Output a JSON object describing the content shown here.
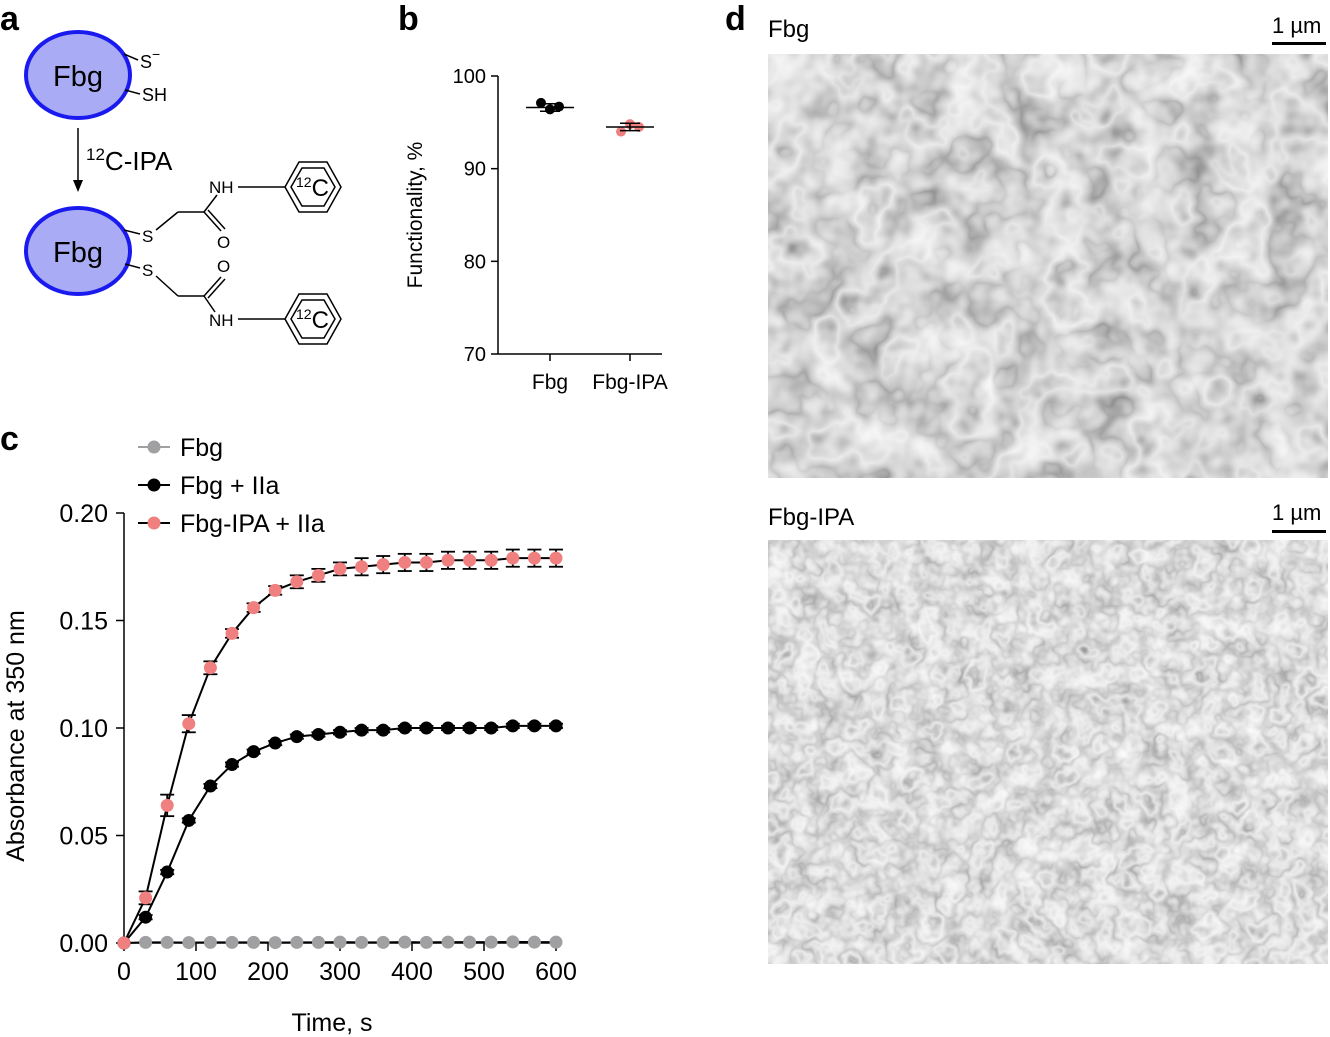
{
  "panels": {
    "a": {
      "letter": "a"
    },
    "b": {
      "letter": "b"
    },
    "c": {
      "letter": "c"
    },
    "d": {
      "letter": "d"
    }
  },
  "scheme": {
    "protein_label": "Fbg",
    "thiolate": "S",
    "thiolate_charge": "−",
    "thiol": "SH",
    "reagent_superscript": "12",
    "reagent_label": "C-IPA",
    "sulfur": "S",
    "amide_nh": "NH",
    "carbonyl_o": "O",
    "ring_isotope_superscript": "12",
    "ring_isotope_letter": "C",
    "colors": {
      "protein_fill": "#a9acf5",
      "protein_stroke": "#1a1aef"
    }
  },
  "images": {
    "top": {
      "caption": "Fbg",
      "scale_label": "1 µm"
    },
    "bottom": {
      "caption": "Fbg-IPA",
      "scale_label": "1 µm"
    }
  },
  "chart_data": [
    {
      "id": "b",
      "type": "scatter",
      "categories": [
        "Fbg",
        "Fbg-IPA"
      ],
      "ylabel": "Functionality, %",
      "xlabel": "",
      "ylim": [
        70,
        100
      ],
      "yticks": [
        70,
        80,
        90,
        100
      ],
      "series": [
        {
          "category": "Fbg",
          "points": [
            97.1,
            96.4,
            96.7
          ],
          "mean": 96.6,
          "sd": 0.4,
          "color": "#000000"
        },
        {
          "category": "Fbg-IPA",
          "points": [
            94.0,
            94.8,
            94.5
          ],
          "mean": 94.5,
          "sd": 0.4,
          "color": "#f08080"
        }
      ],
      "grid": false
    },
    {
      "id": "c",
      "type": "line",
      "xlabel": "Time, s",
      "ylabel": "Absorbance at 350 nm",
      "xlim": [
        0,
        600
      ],
      "ylim": [
        0,
        0.2
      ],
      "xticks": [
        0,
        100,
        200,
        300,
        400,
        500,
        600
      ],
      "yticks": [
        "0.00",
        "0.05",
        "0.10",
        "0.15",
        "0.20"
      ],
      "x": [
        0,
        30,
        60,
        90,
        120,
        150,
        180,
        210,
        240,
        270,
        300,
        330,
        360,
        390,
        420,
        450,
        480,
        510,
        540,
        570,
        600
      ],
      "legend": "top-left",
      "grid": false,
      "series": [
        {
          "name": "Fbg",
          "color": "#a0a0a3",
          "values": [
            0,
            0.0003,
            0.0003,
            0.0002,
            0.0003,
            0.0003,
            0.0003,
            0.0002,
            0.0003,
            0.0003,
            0.0004,
            0.0003,
            0.0003,
            0.0004,
            0.0003,
            0.0004,
            0.0004,
            0.0004,
            0.0005,
            0.0004,
            0.0004
          ],
          "error": [
            0,
            0,
            0,
            0,
            0,
            0,
            0,
            0,
            0,
            0,
            0,
            0,
            0,
            0,
            0,
            0,
            0,
            0,
            0,
            0,
            0
          ]
        },
        {
          "name": "Fbg + IIa",
          "color": "#000000",
          "values": [
            0,
            0.012,
            0.033,
            0.057,
            0.073,
            0.083,
            0.089,
            0.093,
            0.096,
            0.097,
            0.098,
            0.099,
            0.099,
            0.1,
            0.1,
            0.1,
            0.1,
            0.1,
            0.101,
            0.101,
            0.101
          ],
          "error": [
            0,
            0.001,
            0.001,
            0.001,
            0.001,
            0.001,
            0.001,
            0.001,
            0.001,
            0.001,
            0.001,
            0.001,
            0.001,
            0.001,
            0.001,
            0.001,
            0.001,
            0.001,
            0.001,
            0.001,
            0.001
          ]
        },
        {
          "name": "Fbg-IPA + IIa",
          "color": "#f08080",
          "values": [
            0,
            0.021,
            0.064,
            0.102,
            0.128,
            0.144,
            0.156,
            0.164,
            0.168,
            0.171,
            0.174,
            0.175,
            0.176,
            0.177,
            0.177,
            0.178,
            0.178,
            0.178,
            0.179,
            0.179,
            0.179
          ],
          "error": [
            0,
            0.003,
            0.005,
            0.004,
            0.003,
            0.002,
            0.002,
            0.002,
            0.003,
            0.003,
            0.003,
            0.004,
            0.004,
            0.004,
            0.004,
            0.004,
            0.004,
            0.004,
            0.004,
            0.004,
            0.004
          ]
        }
      ]
    }
  ]
}
